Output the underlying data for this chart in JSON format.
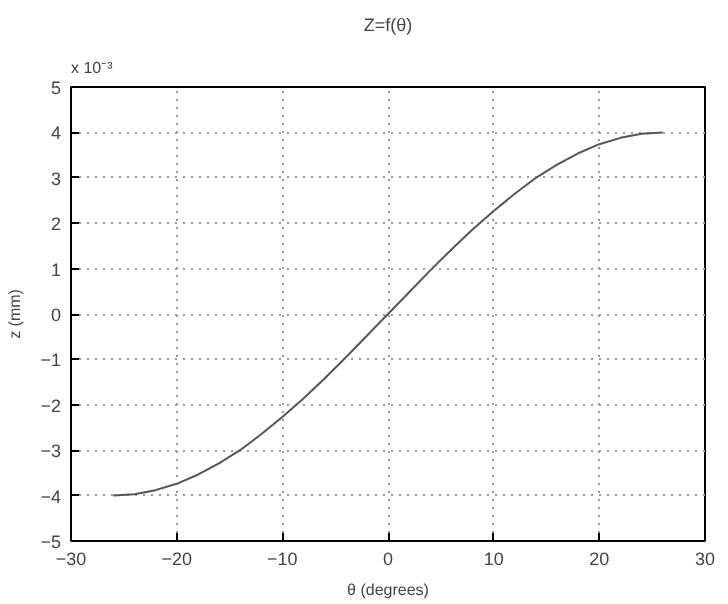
{
  "chart_data": {
    "type": "line",
    "title": "Z=f(θ)",
    "xlabel": "θ (degrees)",
    "ylabel": "z (mm)",
    "annotations": [
      "x 10⁻³"
    ],
    "x": [
      -26,
      -24,
      -22,
      -20,
      -18,
      -16,
      -14,
      -12,
      -10,
      -8,
      -6,
      -4,
      -2,
      0,
      2,
      4,
      6,
      8,
      10,
      12,
      14,
      16,
      18,
      20,
      22,
      24,
      26
    ],
    "series": [
      {
        "color": "#555555",
        "values": [
          -4,
          -3.97,
          -3.88,
          -3.74,
          -3.54,
          -3.29,
          -3,
          -2.65,
          -2.27,
          -1.86,
          -1.42,
          -0.96,
          -0.48,
          0,
          0.48,
          0.96,
          1.42,
          1.86,
          2.27,
          2.65,
          3,
          3.29,
          3.54,
          3.74,
          3.88,
          3.97,
          4
        ]
      }
    ],
    "xlim": [
      -30,
      30
    ],
    "xticks": [
      -30,
      -20,
      -10,
      0,
      10,
      20,
      30
    ],
    "ylim": [
      -5,
      5
    ],
    "yticks": [
      -5,
      -4,
      -3,
      -2,
      -1,
      0,
      1,
      2,
      3,
      4,
      5
    ],
    "grid": true,
    "marker": "none",
    "line_style": "solid"
  }
}
